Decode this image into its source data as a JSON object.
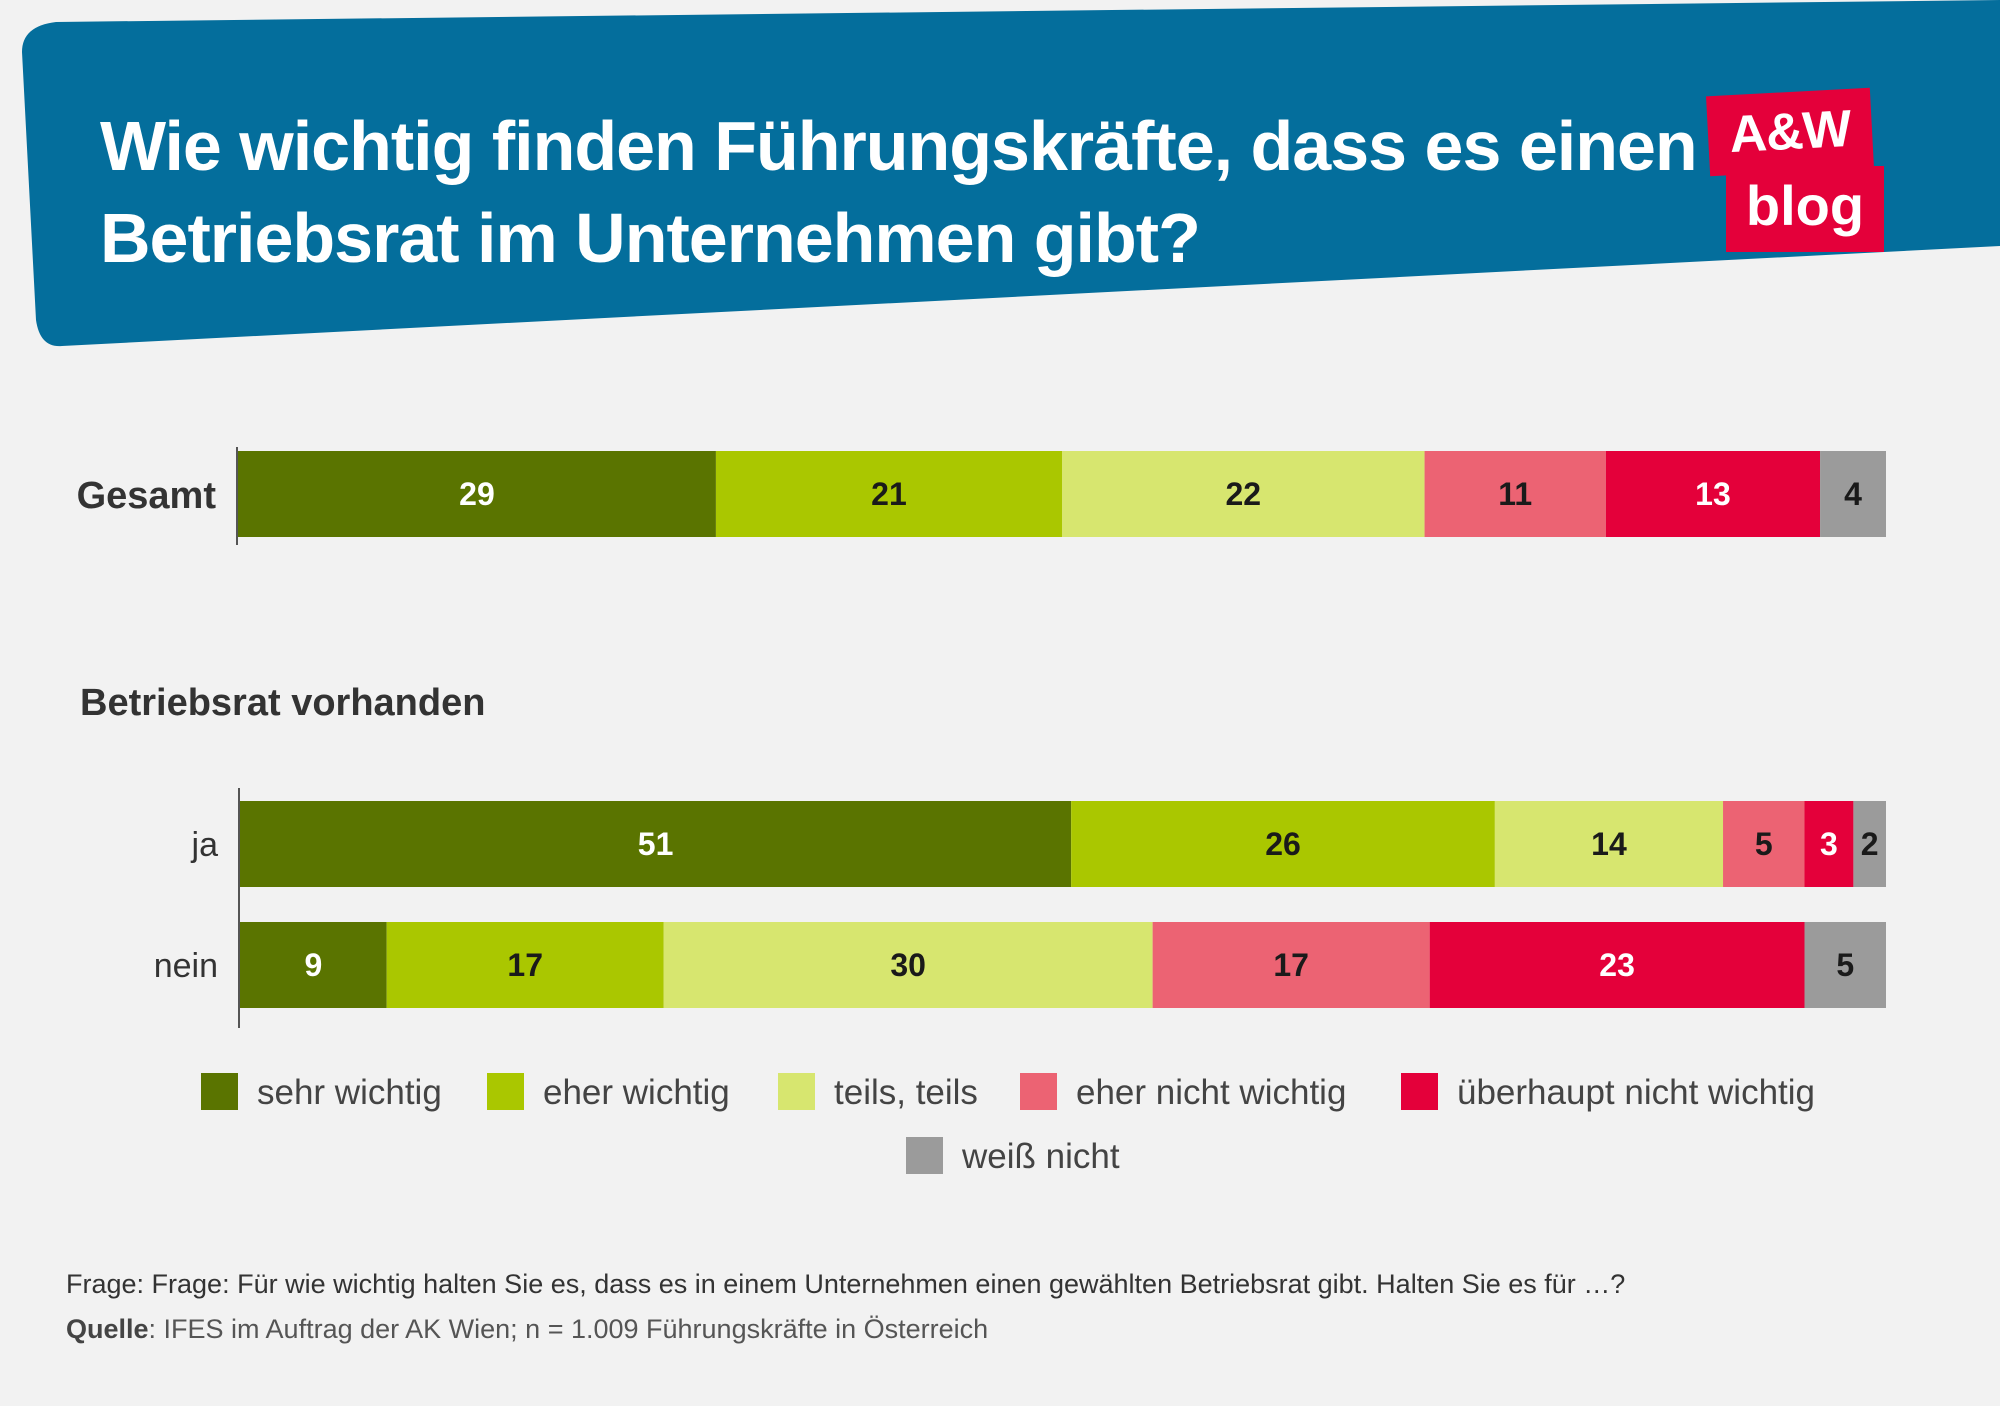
{
  "header": {
    "title_line1": "Wie wichtig finden Führungskräfte, dass es einen",
    "title_line2": "Betriebsrat im Unternehmen gibt?",
    "band_color": "#046e9c"
  },
  "logo": {
    "line1": "A&W",
    "line2": "blog",
    "color": "#e4003a"
  },
  "chart_data": {
    "type": "bar",
    "orientation": "horizontal",
    "stacked": true,
    "title": "Wie wichtig finden Führungskräfte, dass es einen Betriebsrat im Unternehmen gibt?",
    "categories": [
      "sehr wichtig",
      "eher wichtig",
      "teils, teils",
      "eher nicht wichtig",
      "überhaupt nicht wichtig",
      "weiß nicht"
    ],
    "colors": [
      "#5a7400",
      "#aac700",
      "#d7e66f",
      "#ec6373",
      "#e4003a",
      "#9b9b9b"
    ],
    "label_colors": [
      "#ffffff",
      "#1a1a1a",
      "#1a1a1a",
      "#1a1a1a",
      "#ffffff",
      "#1a1a1a"
    ],
    "group_title": "Betriebsrat vorhanden",
    "rows": [
      {
        "label": "Gesamt",
        "values": [
          29,
          21,
          22,
          11,
          13,
          4
        ]
      },
      {
        "label": "ja",
        "values": [
          51,
          26,
          14,
          5,
          3,
          2
        ]
      },
      {
        "label": "nein",
        "values": [
          9,
          17,
          30,
          17,
          23,
          5
        ]
      }
    ],
    "xlim": [
      0,
      100
    ],
    "legend_position": "bottom"
  },
  "footnote": {
    "question": "Frage: Frage: Für wie wichtig halten Sie es, dass es in einem Unternehmen einen gewählten Betriebsrat gibt. Halten Sie es für …?",
    "source_label": "Quelle",
    "source_text": ": IFES im Auftrag der AK Wien; n = 1.009 Führungskräfte in Österreich"
  }
}
